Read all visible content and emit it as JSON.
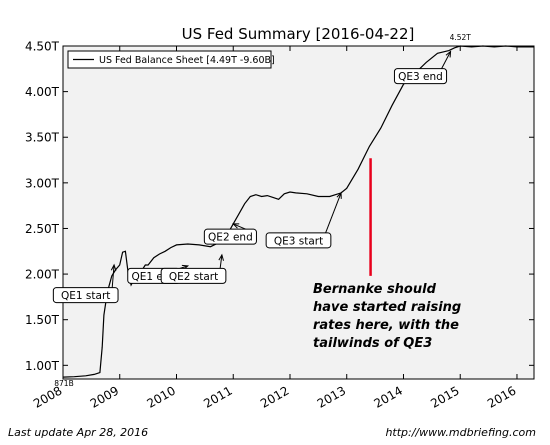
{
  "chart_data": {
    "type": "line",
    "title": "US Fed Summary  [2016-04-22]",
    "xlabel": "",
    "ylabel": "",
    "xlim": [
      2008.0,
      2016.3
    ],
    "ylim": [
      0.85,
      4.5
    ],
    "x_ticks": [
      2008,
      2009,
      2010,
      2011,
      2012,
      2013,
      2014,
      2015,
      2016
    ],
    "x_tick_labels": [
      "2008",
      "2009",
      "2010",
      "2011",
      "2012",
      "2013",
      "2014",
      "2015",
      "2016"
    ],
    "y_ticks": [
      1.0,
      1.5,
      2.0,
      2.5,
      3.0,
      3.5,
      4.0,
      4.5
    ],
    "y_tick_labels": [
      "1.00T",
      "1.50T",
      "2.00T",
      "2.50T",
      "3.00T",
      "3.50T",
      "4.00T",
      "4.50T"
    ],
    "grid": false,
    "legend_position": "top-left",
    "series": [
      {
        "name": "US Fed Balance Sheet [4.49T -9.60B]",
        "color": "#000000",
        "x": [
          2008.0,
          2008.2,
          2008.4,
          2008.55,
          2008.65,
          2008.69,
          2008.72,
          2008.78,
          2008.86,
          2008.93,
          2009.0,
          2009.05,
          2009.1,
          2009.15,
          2009.2,
          2009.3,
          2009.4,
          2009.45,
          2009.5,
          2009.6,
          2009.7,
          2009.8,
          2009.9,
          2010.0,
          2010.2,
          2010.4,
          2010.6,
          2010.8,
          2010.9,
          2011.0,
          2011.1,
          2011.2,
          2011.3,
          2011.4,
          2011.5,
          2011.6,
          2011.7,
          2011.8,
          2011.9,
          2012.0,
          2012.1,
          2012.3,
          2012.5,
          2012.7,
          2012.9,
          2013.0,
          2013.2,
          2013.4,
          2013.6,
          2013.8,
          2014.0,
          2014.2,
          2014.4,
          2014.6,
          2014.8,
          2014.9,
          2015.0,
          2015.2,
          2015.4,
          2015.6,
          2015.8,
          2016.0,
          2016.3
        ],
        "y": [
          0.871,
          0.875,
          0.885,
          0.9,
          0.92,
          1.2,
          1.55,
          1.8,
          1.98,
          2.05,
          2.1,
          2.24,
          2.25,
          2.0,
          1.88,
          2.0,
          2.05,
          2.1,
          2.1,
          2.18,
          2.22,
          2.25,
          2.29,
          2.32,
          2.33,
          2.32,
          2.3,
          2.36,
          2.44,
          2.55,
          2.66,
          2.77,
          2.85,
          2.87,
          2.85,
          2.86,
          2.84,
          2.82,
          2.88,
          2.9,
          2.89,
          2.88,
          2.85,
          2.85,
          2.89,
          2.94,
          3.15,
          3.4,
          3.6,
          3.85,
          4.08,
          4.2,
          4.32,
          4.42,
          4.45,
          4.48,
          4.5,
          4.49,
          4.5,
          4.49,
          4.5,
          4.49,
          4.49
        ]
      }
    ],
    "annotations": [
      {
        "text": "QE1 start",
        "target": [
          2008.9,
          2.1
        ],
        "label_at": [
          2008.4,
          1.77
        ]
      },
      {
        "text": "QE1 end",
        "target": [
          2010.2,
          2.09
        ],
        "label_at": [
          2009.6,
          1.98
        ]
      },
      {
        "text": "QE2 start",
        "target": [
          2010.8,
          2.21
        ],
        "label_at": [
          2010.3,
          1.98
        ]
      },
      {
        "text": "QE2 end",
        "target": [
          2011.0,
          2.55
        ],
        "label_at": [
          2010.95,
          2.41
        ]
      },
      {
        "text": "QE3 start",
        "target": [
          2012.9,
          2.89
        ],
        "label_at": [
          2012.15,
          2.37
        ]
      },
      {
        "text": "QE3 end",
        "target": [
          2014.83,
          4.44
        ],
        "label_at": [
          2014.3,
          4.17
        ]
      }
    ],
    "extremes": [
      {
        "text": "4.52T",
        "at": [
          2015.0,
          4.52
        ]
      },
      {
        "text": "871B",
        "at": [
          2008.0,
          0.871
        ]
      }
    ],
    "red_line": {
      "x": 2013.42,
      "y": [
        1.98,
        3.27
      ],
      "color": "#e8001c"
    },
    "callout": {
      "lines": [
        "Bernanke should",
        "have started raising",
        "rates here, with the",
        "tailwinds of QE3"
      ],
      "color": "#000000"
    }
  },
  "footer": {
    "left": "Last update Apr 28, 2016",
    "right": "http://www.mdbriefing.com"
  }
}
